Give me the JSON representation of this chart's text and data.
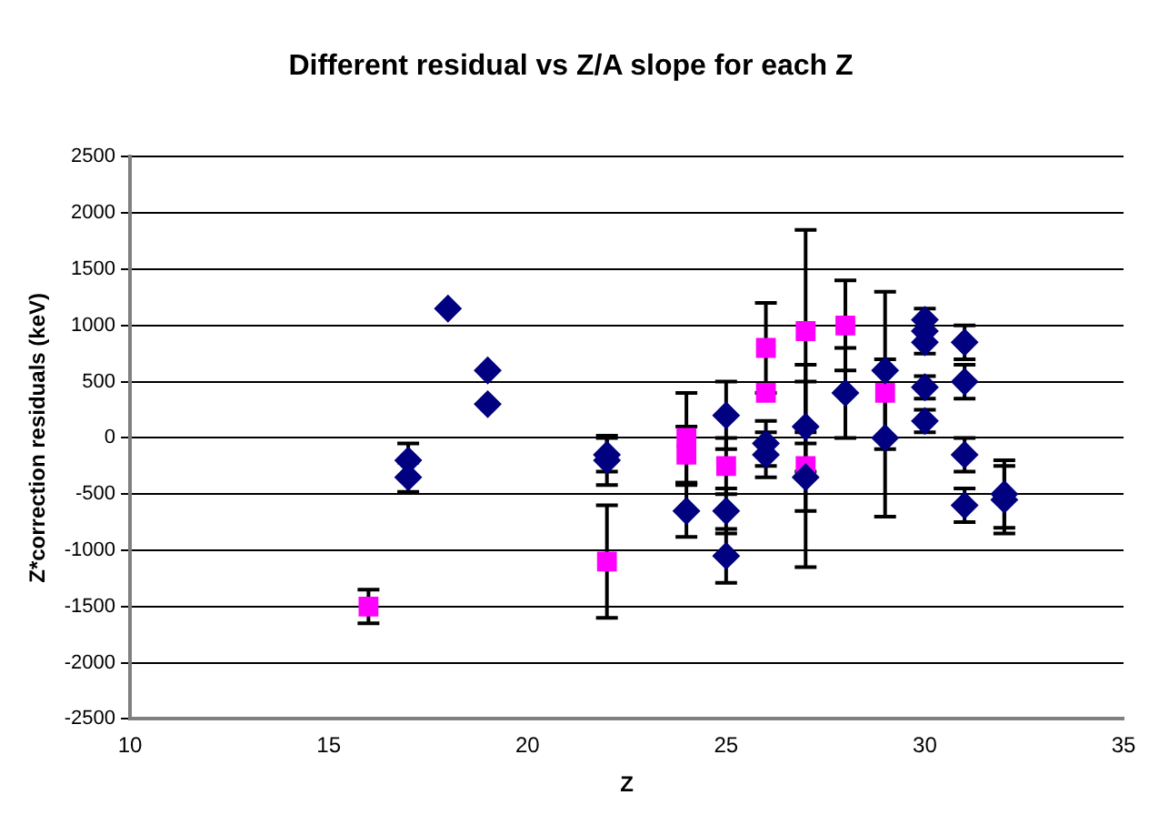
{
  "chart_data": {
    "type": "scatter",
    "title": "Different residual vs Z/A slope for each Z",
    "xlabel": "Z",
    "ylabel": "Z*correction residuals (keV)",
    "xlim": [
      10,
      35
    ],
    "xticks": [
      10,
      15,
      20,
      25,
      30,
      35
    ],
    "ylim": [
      -2500,
      2500
    ],
    "yticks": [
      -2500,
      -2000,
      -1500,
      -1000,
      -500,
      0,
      500,
      1000,
      1500,
      2000,
      2500
    ],
    "grid": "y",
    "legend": false,
    "series": [
      {
        "color": "#000080",
        "marker": "diamond",
        "x": [
          17,
          17,
          18,
          19,
          19,
          22,
          22,
          24,
          25,
          25,
          25,
          26,
          26,
          27,
          27,
          28,
          29,
          29,
          30,
          30,
          30,
          30,
          30,
          31,
          31,
          31,
          31,
          32,
          32
        ],
        "values": [
          -200,
          -350,
          1150,
          600,
          300,
          -150,
          -200,
          -650,
          200,
          -650,
          -1050,
          -50,
          -150,
          100,
          -350,
          400,
          600,
          0,
          1050,
          950,
          850,
          450,
          150,
          850,
          500,
          -150,
          -600,
          -500,
          -550
        ],
        "errors": [
          150,
          130,
          null,
          null,
          null,
          150,
          220,
          230,
          300,
          200,
          240,
          200,
          200,
          400,
          300,
          400,
          700,
          700,
          100,
          null,
          100,
          100,
          100,
          150,
          150,
          150,
          150,
          300,
          300
        ]
      },
      {
        "color": "#ff00ff",
        "marker": "square",
        "x": [
          16,
          22,
          24,
          24,
          25,
          26,
          26,
          27,
          27,
          28,
          29
        ],
        "values": [
          -1500,
          -1100,
          0,
          -150,
          -250,
          800,
          400,
          950,
          -250,
          1000,
          400
        ],
        "errors": [
          150,
          500,
          400,
          250,
          250,
          400,
          null,
          900,
          900,
          400,
          null
        ]
      }
    ]
  }
}
